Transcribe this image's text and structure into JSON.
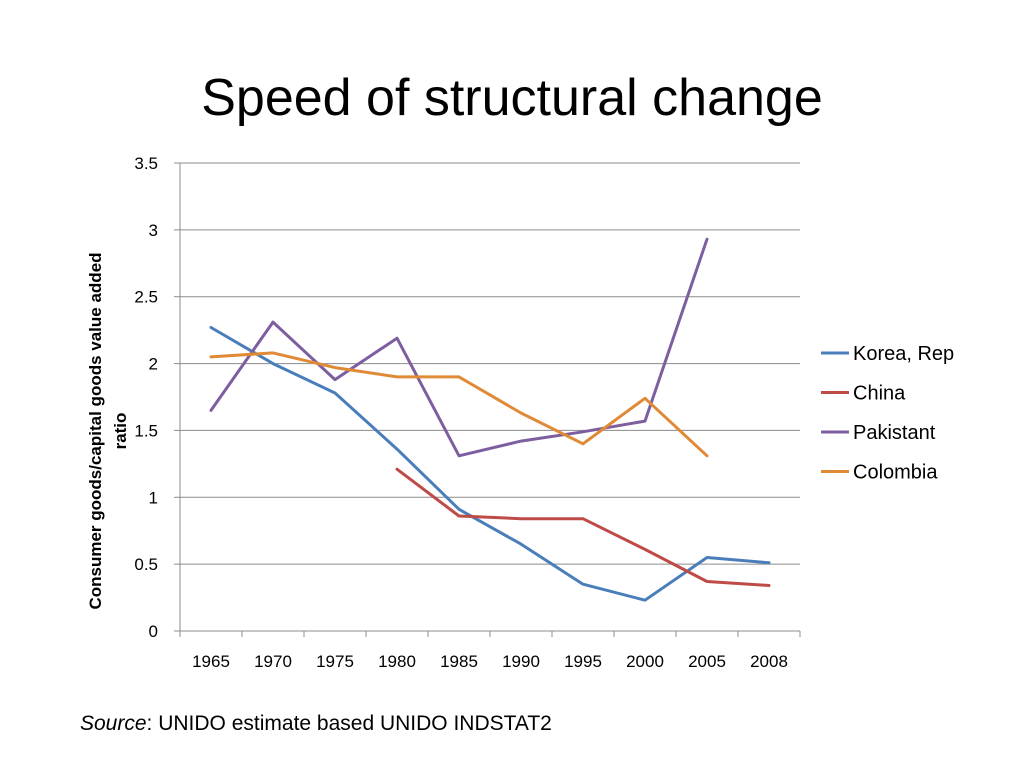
{
  "slide": {
    "title": "Speed of structural change"
  },
  "source": {
    "prefix": "Source",
    "text": ": UNIDO estimate based UNIDO INDSTAT2"
  },
  "chart_data": {
    "type": "line",
    "title": "",
    "xlabel": "",
    "ylabel": "Consumer goods/capital goods value added ratio",
    "categories": [
      "1965",
      "1970",
      "1975",
      "1980",
      "1985",
      "1990",
      "1995",
      "2000",
      "2005",
      "2008"
    ],
    "ylim": [
      0,
      3.5
    ],
    "yticks": [
      "0",
      "0.5",
      "1",
      "1.5",
      "2",
      "2.5",
      "3",
      "3.5"
    ],
    "grid": true,
    "legend": "right",
    "series": [
      {
        "name": "Korea, Rep",
        "color": "#4a7ebb",
        "values": [
          2.27,
          2.0,
          1.78,
          1.36,
          0.91,
          0.65,
          0.35,
          0.23,
          0.55,
          0.51
        ]
      },
      {
        "name": "China",
        "color": "#be4b48",
        "values": [
          null,
          null,
          null,
          1.21,
          0.86,
          0.84,
          0.84,
          0.61,
          0.37,
          0.34
        ]
      },
      {
        "name": "Pakistant",
        "color": "#7d5fa0",
        "values": [
          1.65,
          2.31,
          1.88,
          2.19,
          1.31,
          1.42,
          1.49,
          1.57,
          2.93,
          null
        ]
      },
      {
        "name": "Colombia",
        "color": "#e08a36",
        "values": [
          2.05,
          2.08,
          1.97,
          1.9,
          1.9,
          1.63,
          1.4,
          1.74,
          1.31,
          null
        ]
      }
    ]
  }
}
